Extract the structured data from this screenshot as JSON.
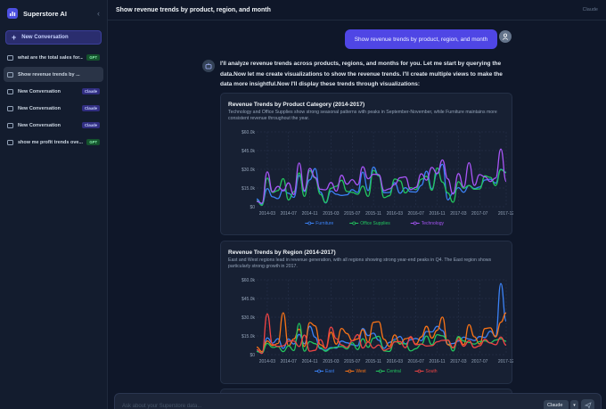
{
  "app": {
    "title": "Superstore AI"
  },
  "sidebar": {
    "new_label": "New Conversation",
    "conversations": [
      {
        "label": "what are the total sales for...",
        "badge": "GPT"
      },
      {
        "label": "Show revenue trends by ...",
        "badge": ""
      },
      {
        "label": "New Conversation",
        "badge": "Claude"
      },
      {
        "label": "New Conversation",
        "badge": "Claude"
      },
      {
        "label": "New Conversation",
        "badge": "Claude"
      },
      {
        "label": "show me profit trends ove...",
        "badge": "GPT"
      }
    ]
  },
  "header": {
    "title": "Show revenue trends by product, region, and month",
    "model": "Claude"
  },
  "chat": {
    "user_message": "Show revenue trends by product, region, and month",
    "assistant_message": "I'll analyze revenue trends across products, regions, and months for you. Let me start by querying the data.Now let me create visualizations to show the revenue trends. I'll create multiple views to make the data more insightful.Now I'll display these trends through visualizations:"
  },
  "input": {
    "placeholder": "Ask about your Superstore data...",
    "model": "Claude"
  },
  "colors": {
    "furniture": "#3b82f6",
    "office": "#22c55e",
    "technology": "#a855f7",
    "east": "#3b82f6",
    "west": "#f97316",
    "central": "#22c55e",
    "south": "#ef4444"
  },
  "chart_data": [
    {
      "type": "line",
      "title": "Revenue Trends by Product Category (2014-2017)",
      "subtitle": "Technology and Office Supplies show strong seasonal patterns with peaks in September-November, while Furniture maintains more consistent revenue throughout the year.",
      "x": [
        "2014-01",
        "2014-02",
        "2014-03",
        "2014-04",
        "2014-05",
        "2014-06",
        "2014-07",
        "2014-08",
        "2014-09",
        "2014-10",
        "2014-11",
        "2014-12",
        "2015-01",
        "2015-02",
        "2015-03",
        "2015-04",
        "2015-05",
        "2015-06",
        "2015-07",
        "2015-08",
        "2015-09",
        "2015-10",
        "2015-11",
        "2015-12",
        "2016-01",
        "2016-02",
        "2016-03",
        "2016-04",
        "2016-05",
        "2016-06",
        "2016-07",
        "2016-08",
        "2016-09",
        "2016-10",
        "2016-11",
        "2016-12",
        "2017-01",
        "2017-02",
        "2017-03",
        "2017-04",
        "2017-05",
        "2017-06",
        "2017-07",
        "2017-08",
        "2017-09",
        "2017-10",
        "2017-11",
        "2017-12"
      ],
      "x_ticks": [
        "2014-03",
        "2014-07",
        "2014-11",
        "2015-03",
        "2015-07",
        "2015-11",
        "2016-03",
        "2016-07",
        "2016-11",
        "2017-03",
        "2017-07",
        "2017-12"
      ],
      "y_ticks": [
        "$0",
        "$15.0k",
        "$30.0k",
        "$45.0k",
        "$60.0k"
      ],
      "ylim": [
        0,
        60000
      ],
      "legend_position": "bottom",
      "series": [
        {
          "name": "Furniture",
          "values": [
            6200,
            2000,
            14600,
            7900,
            6500,
            13600,
            10800,
            7500,
            25000,
            12300,
            21600,
            30600,
            11800,
            3100,
            12500,
            10000,
            9100,
            9600,
            13700,
            11400,
            27800,
            13000,
            31800,
            25100,
            11300,
            11400,
            19300,
            10800,
            15200,
            12000,
            11800,
            17100,
            28500,
            14300,
            26900,
            34000,
            5500,
            11000,
            15300,
            11600,
            17100,
            14500,
            15800,
            21400,
            22100,
            18900,
            30000,
            27500
          ]
        },
        {
          "name": "Office Supplies",
          "values": [
            4900,
            1100,
            22900,
            11400,
            12900,
            22500,
            5400,
            11900,
            27000,
            8300,
            29000,
            23100,
            9900,
            3300,
            14800,
            16400,
            21200,
            12200,
            11500,
            10000,
            16500,
            8300,
            29200,
            24700,
            7300,
            8800,
            22200,
            20800,
            11100,
            15300,
            13800,
            22100,
            24400,
            13200,
            31100,
            19700,
            11100,
            3600,
            20100,
            14800,
            17000,
            14000,
            14300,
            24800,
            23600,
            17000,
            29700,
            27300
          ]
        },
        {
          "name": "Technology",
          "values": [
            4300,
            2800,
            27900,
            11900,
            16300,
            12700,
            19100,
            9800,
            35100,
            12900,
            30700,
            23600,
            14000,
            13600,
            19400,
            12500,
            25200,
            18100,
            21700,
            17500,
            32100,
            22400,
            26100,
            25800,
            12900,
            14300,
            17800,
            23300,
            23900,
            13700,
            15500,
            26400,
            21300,
            31500,
            26400,
            37500,
            22300,
            10200,
            26600,
            15700,
            35300,
            17100,
            25800,
            23900,
            20200,
            22900,
            46200,
            20300
          ]
        }
      ]
    },
    {
      "type": "line",
      "title": "Revenue Trends by Region (2014-2017)",
      "subtitle": "East and West regions lead in revenue generation, with all regions showing strong year-end peaks in Q4. The East region shows particularly strong growth in 2017.",
      "x": [
        "2014-01",
        "2014-02",
        "2014-03",
        "2014-04",
        "2014-05",
        "2014-06",
        "2014-07",
        "2014-08",
        "2014-09",
        "2014-10",
        "2014-11",
        "2014-12",
        "2015-01",
        "2015-02",
        "2015-03",
        "2015-04",
        "2015-05",
        "2015-06",
        "2015-07",
        "2015-08",
        "2015-09",
        "2015-10",
        "2015-11",
        "2015-12",
        "2016-01",
        "2016-02",
        "2016-03",
        "2016-04",
        "2016-05",
        "2016-06",
        "2016-07",
        "2016-08",
        "2016-09",
        "2016-10",
        "2016-11",
        "2016-12",
        "2017-01",
        "2017-02",
        "2017-03",
        "2017-04",
        "2017-05",
        "2017-06",
        "2017-07",
        "2017-08",
        "2017-09",
        "2017-10",
        "2017-11",
        "2017-12"
      ],
      "x_ticks": [
        "2014-03",
        "2014-07",
        "2014-11",
        "2015-03",
        "2015-07",
        "2015-11",
        "2016-03",
        "2016-07",
        "2016-11",
        "2017-03",
        "2017-07",
        "2017-12"
      ],
      "y_ticks": [
        "$0",
        "$15.0k",
        "$30.0k",
        "$45.0k",
        "$60.0k"
      ],
      "ylim": [
        0,
        60000
      ],
      "legend_position": "bottom",
      "series": [
        {
          "name": "East",
          "values": [
            2700,
            1200,
            13400,
            9200,
            12800,
            5000,
            12500,
            8500,
            16200,
            8700,
            22700,
            14000,
            4800,
            3500,
            5700,
            5200,
            10900,
            9500,
            7900,
            7100,
            21000,
            15300,
            17200,
            11500,
            5100,
            9800,
            12200,
            14600,
            8600,
            12000,
            13000,
            11200,
            18600,
            18200,
            22700,
            19300,
            8200,
            8900,
            10800,
            14000,
            12500,
            11300,
            14500,
            13700,
            18800,
            14900,
            57000,
            26800
          ]
        },
        {
          "name": "West",
          "values": [
            6100,
            2400,
            11000,
            7300,
            8900,
            33600,
            7000,
            12600,
            20400,
            6600,
            25700,
            23100,
            7900,
            5000,
            18000,
            8400,
            21000,
            16900,
            11100,
            12600,
            20000,
            10100,
            26000,
            26400,
            12300,
            6600,
            15800,
            8400,
            12800,
            13700,
            8400,
            14200,
            22700,
            13300,
            19600,
            30100,
            8000,
            5600,
            13800,
            7900,
            24000,
            14300,
            8600,
            20900,
            21500,
            14200,
            26000,
            33500
          ]
        },
        {
          "name": "Central",
          "values": [
            2500,
            1600,
            9000,
            5800,
            6400,
            2400,
            7000,
            3300,
            25100,
            2800,
            10400,
            8800,
            5600,
            2700,
            5100,
            6000,
            6600,
            4600,
            9600,
            4100,
            12800,
            5900,
            13200,
            14700,
            3000,
            2600,
            10800,
            9100,
            8700,
            2900,
            4800,
            8200,
            14900,
            7900,
            16000,
            15100,
            11600,
            2900,
            14600,
            10900,
            9700,
            8400,
            10400,
            11100,
            9500,
            11700,
            12700,
            10700
          ]
        },
        {
          "name": "South",
          "values": [
            4000,
            1000,
            32700,
            8200,
            6600,
            7100,
            10800,
            11000,
            6500,
            15700,
            2800,
            3400,
            12100,
            5100,
            22100,
            12800,
            7800,
            5700,
            11100,
            16100,
            5300,
            10100,
            5300,
            7800,
            3400,
            5000,
            10200,
            10500,
            5600,
            14400,
            7900,
            8500,
            6900,
            7200,
            10300,
            11400,
            11700,
            5500,
            12100,
            6700,
            11200,
            5600,
            7100,
            12300,
            9300,
            7900,
            14100,
            7600
          ]
        }
      ]
    }
  ]
}
